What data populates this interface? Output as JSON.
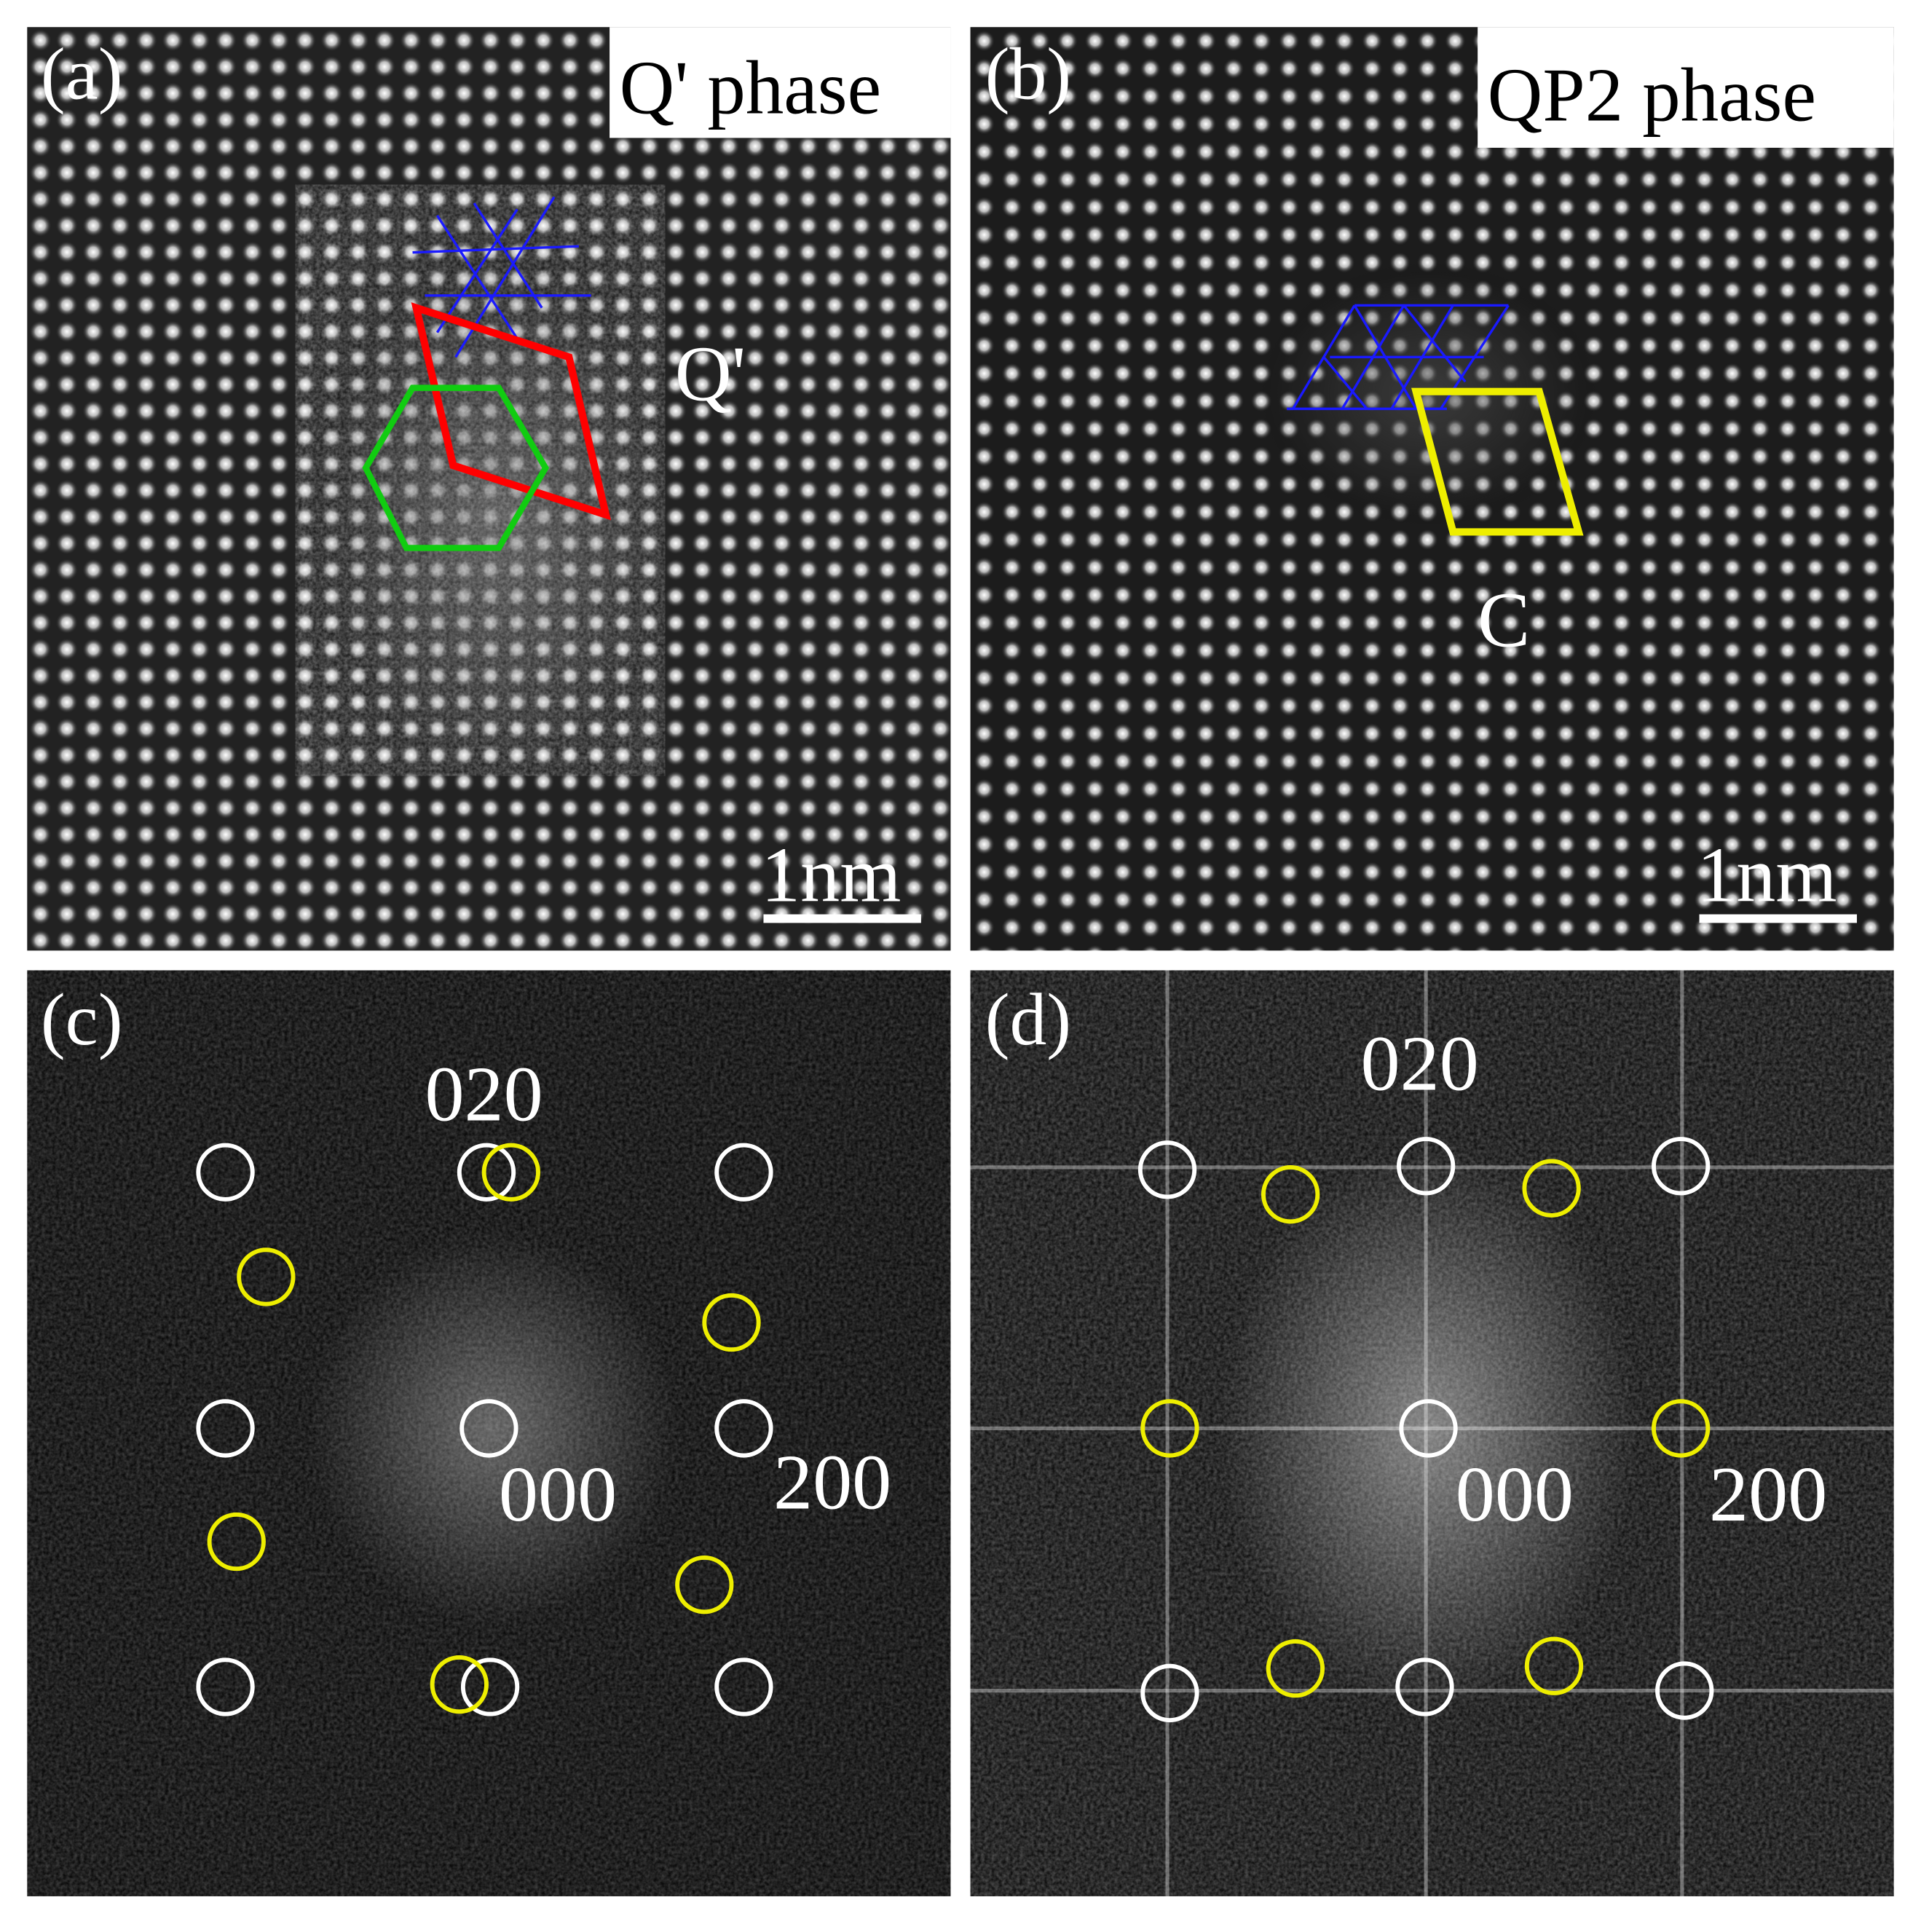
{
  "panels": [
    {
      "label": "(a)",
      "title": "Q' phase",
      "annotation": "Q'",
      "scale_bar": "1nm"
    },
    {
      "label": "(b)",
      "title": "QP2 phase",
      "annotation": "C",
      "scale_bar": "1nm"
    },
    {
      "label": "(c)",
      "spots": [
        "020",
        "000",
        "200"
      ]
    },
    {
      "label": "(d)",
      "spots": [
        "020",
        "000",
        "200"
      ]
    }
  ]
}
